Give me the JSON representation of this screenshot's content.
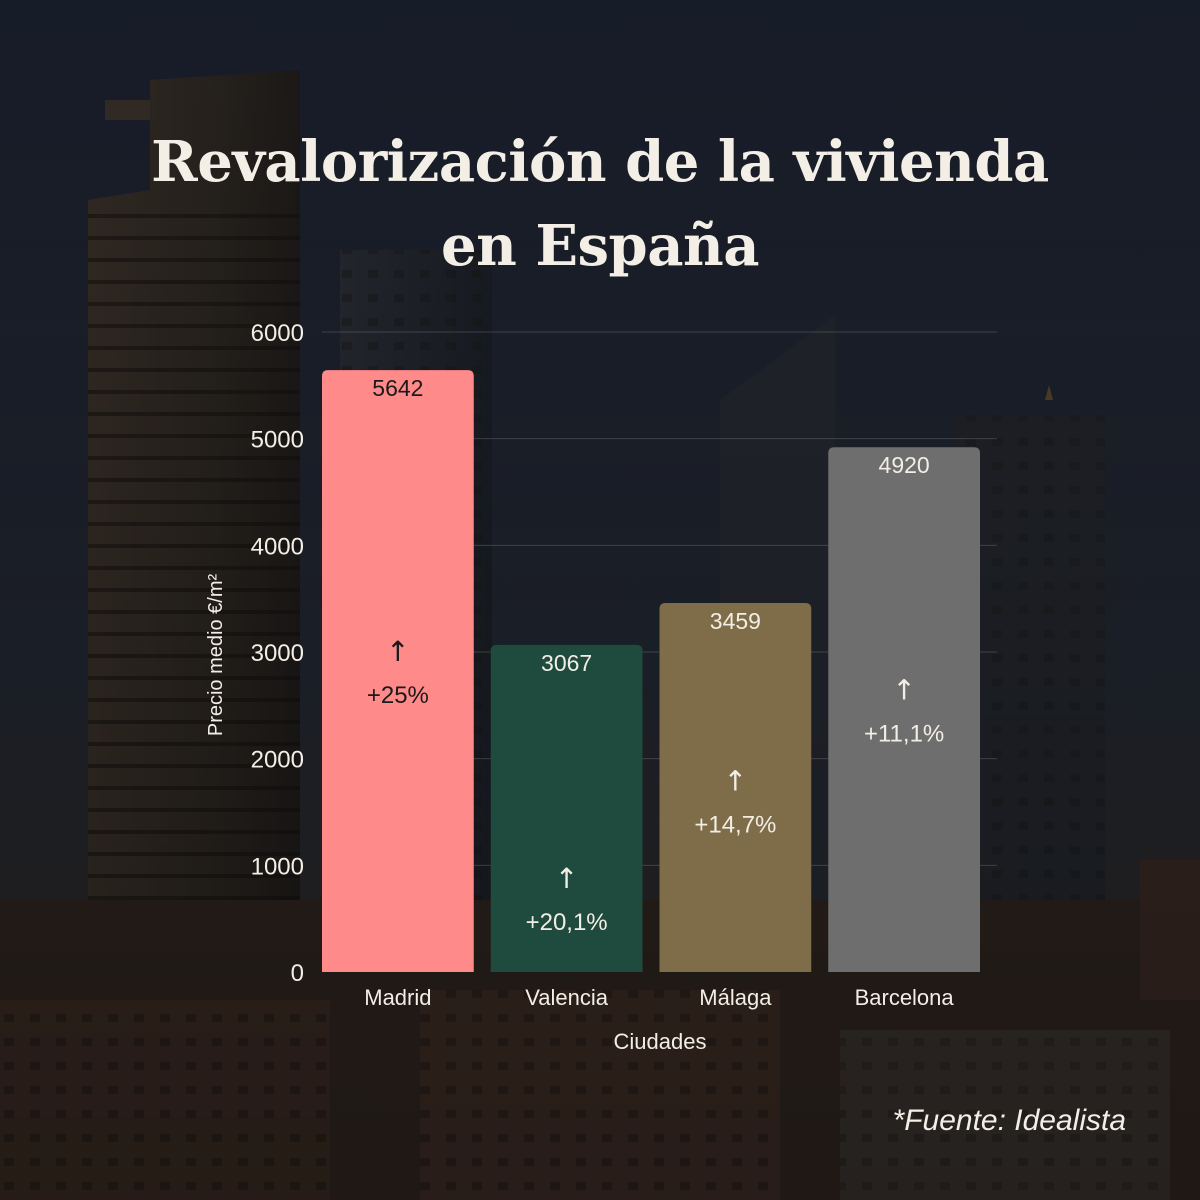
{
  "title": {
    "line1": "Revalorización de la vivienda",
    "line2": "en España"
  },
  "source": "*Fuente: Idealista",
  "chart_data": {
    "type": "bar",
    "title": "Revalorización de la vivienda en España",
    "xlabel": "Ciudades",
    "ylabel": "Precio medio €/m²",
    "ylim": [
      0,
      6000
    ],
    "yticks": [
      0,
      1000,
      2000,
      3000,
      4000,
      5000,
      6000
    ],
    "grid": true,
    "categories": [
      "Madrid",
      "Valencia",
      "Málaga",
      "Barcelona"
    ],
    "values": [
      5642,
      3067,
      3459,
      4920
    ],
    "growth": [
      "+25%",
      "+20,1%",
      "+14,7%",
      "+11,1%"
    ],
    "growth_arrow": "↑",
    "colors": [
      "#ff8a8a",
      "#1f4a3e",
      "#7f6d49",
      "#6e6e6e"
    ],
    "label_colors": [
      "#1a1a1a",
      "#f2eee6",
      "#f2eee6",
      "#f2eee6"
    ]
  },
  "icons": {
    "growth_arrow": "arrow-up-icon"
  }
}
